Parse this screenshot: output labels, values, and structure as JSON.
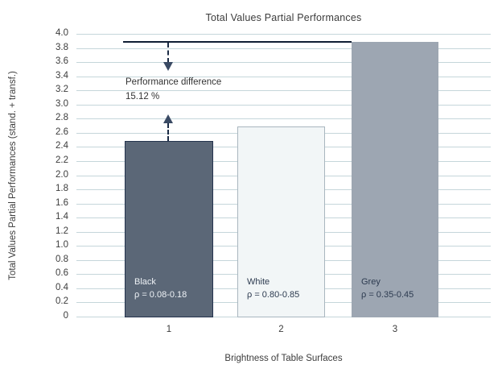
{
  "colors": {
    "grid": "#c5d6da",
    "annotation_line": "#101e34",
    "annotation_dash": "#1b2b45",
    "annotation_arrow": "#3a4a64",
    "text": "#3c3c3c"
  },
  "chart_data": {
    "type": "bar",
    "title": "Total Values Partial Performances",
    "xlabel": "Brightness of Table Surfaces",
    "ylabel": "Total Values Partial Performances (stand. + transf.)",
    "categories": [
      "1",
      "2",
      "3"
    ],
    "values": [
      2.5,
      2.7,
      3.9
    ],
    "ylim": [
      0,
      4.0
    ],
    "ytick_step": 0.2,
    "yticks": [
      "0",
      "0.2",
      "0.4",
      "0.6",
      "0.8",
      "1.0",
      "1.2",
      "1.4",
      "1.6",
      "1.8",
      "2.0",
      "2.2",
      "2.4",
      "2.6",
      "2.8",
      "3.0",
      "3.2",
      "3.4",
      "3.6",
      "3.8",
      "4.0"
    ],
    "grid": true,
    "legend": "none",
    "bars": [
      {
        "label": "Black",
        "rho": "ρ = 0.08-0.18",
        "value": 2.5,
        "fill": "#5b6777",
        "border": "#24334d",
        "label_color": "#eef2f6"
      },
      {
        "label": "White",
        "rho": "ρ = 0.80-0.85",
        "value": 2.7,
        "fill": "#f2f6f7",
        "border": "#a9b6bf",
        "label_color": "#2d3b50"
      },
      {
        "label": "Grey",
        "rho": "ρ = 0.35-0.45",
        "value": 3.9,
        "fill": "#9da6b2",
        "border": "#9da6b2",
        "label_color": "#2d3b50"
      }
    ],
    "annotation": {
      "text": [
        "Performance difference",
        "15.12 %"
      ],
      "reference_line_y": 3.9,
      "arrow_target_bar": "1"
    }
  }
}
